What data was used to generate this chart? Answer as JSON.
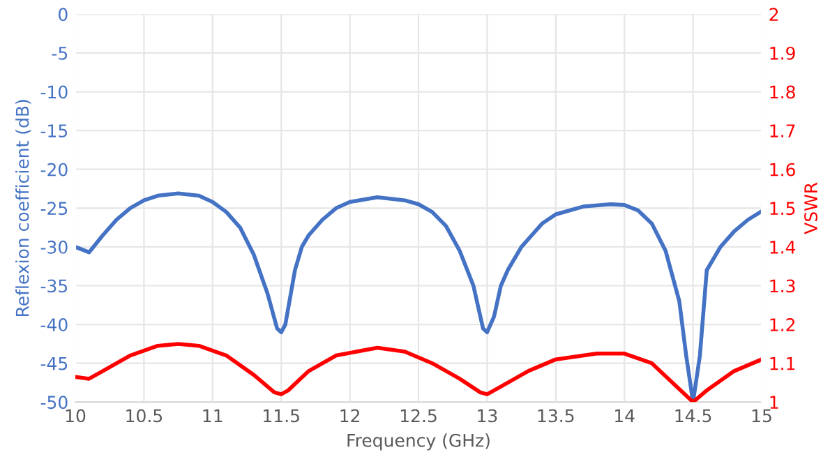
{
  "chart_data": {
    "type": "line",
    "xlabel": "Frequency (GHz)",
    "ylabel": "Reflexion coefficient (dB)",
    "y2label": "VSWR",
    "xlim": [
      10,
      15
    ],
    "xticks": [
      10,
      10.5,
      11,
      11.5,
      12,
      12.5,
      13,
      13.5,
      14,
      14.5,
      15
    ],
    "ylim": [
      -50,
      0
    ],
    "yticks": [
      -50,
      -45,
      -40,
      -35,
      -30,
      -25,
      -20,
      -15,
      -10,
      -5,
      0
    ],
    "y2lim": [
      1,
      2
    ],
    "y2ticks": [
      1,
      1.1,
      1.2,
      1.3,
      1.4,
      1.5,
      1.6,
      1.7,
      1.8,
      1.9,
      2
    ],
    "grid": true,
    "marker": "none",
    "line_style": "solid",
    "series": [
      {
        "color": "#4472c4",
        "x": [
          10,
          10.1,
          10.2,
          10.3,
          10.4,
          10.5,
          10.6,
          10.75,
          10.9,
          11.0,
          11.1,
          11.2,
          11.3,
          11.4,
          11.47,
          11.5,
          11.53,
          11.6,
          11.65,
          11.7,
          11.8,
          11.9,
          12.0,
          12.2,
          12.4,
          12.5,
          12.6,
          12.7,
          12.8,
          12.9,
          12.97,
          13.0,
          13.05,
          13.1,
          13.15,
          13.25,
          13.4,
          13.5,
          13.7,
          13.9,
          14.0,
          14.1,
          14.2,
          14.3,
          14.4,
          14.45,
          14.5,
          14.55,
          14.6,
          14.7,
          14.8,
          14.9,
          15
        ],
        "values": [
          -30,
          -30.7,
          -28.5,
          -26.5,
          -25,
          -24,
          -23.4,
          -23.1,
          -23.4,
          -24.2,
          -25.5,
          -27.5,
          -31,
          -36,
          -40.5,
          -41,
          -40,
          -33,
          -30,
          -28.5,
          -26.5,
          -25,
          -24.2,
          -23.6,
          -24,
          -24.5,
          -25.5,
          -27.3,
          -30.5,
          -35,
          -40.5,
          -41,
          -39,
          -35,
          -33,
          -30,
          -27,
          -25.8,
          -24.8,
          -24.5,
          -24.6,
          -25.3,
          -27,
          -30.5,
          -37,
          -44,
          -50,
          -44,
          -33,
          -30,
          -28,
          -26.5,
          -25.4
        ]
      },
      {
        "color": "#ff0000",
        "axis": "y2",
        "x": [
          10,
          10.1,
          10.2,
          10.4,
          10.6,
          10.75,
          10.9,
          11.1,
          11.3,
          11.45,
          11.5,
          11.55,
          11.7,
          11.9,
          12.2,
          12.4,
          12.6,
          12.8,
          12.95,
          13.0,
          13.1,
          13.3,
          13.5,
          13.8,
          14.0,
          14.2,
          14.35,
          14.5,
          14.6,
          14.8,
          15
        ],
        "values": [
          1.065,
          1.06,
          1.08,
          1.12,
          1.145,
          1.15,
          1.145,
          1.12,
          1.07,
          1.025,
          1.02,
          1.03,
          1.08,
          1.12,
          1.14,
          1.13,
          1.1,
          1.06,
          1.025,
          1.02,
          1.04,
          1.08,
          1.11,
          1.125,
          1.125,
          1.1,
          1.05,
          1.0,
          1.03,
          1.08,
          1.11
        ]
      }
    ]
  }
}
